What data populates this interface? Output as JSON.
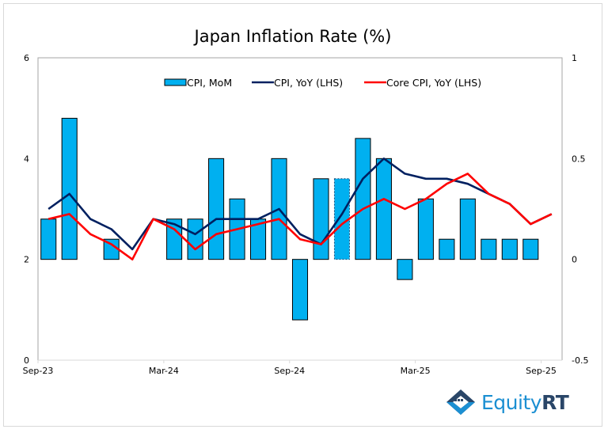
{
  "chart_data": {
    "type": "bar+line",
    "title": "Japan Inflation Rate (%)",
    "xlabel": "",
    "ylabel_left": "",
    "ylabel_right": "",
    "categories": [
      "Sep-23",
      "Oct-23",
      "Nov-23",
      "Dec-23",
      "Jan-24",
      "Feb-24",
      "Mar-24",
      "Apr-24",
      "May-24",
      "Jun-24",
      "Jul-24",
      "Aug-24",
      "Sep-24",
      "Oct-24",
      "Nov-24",
      "Dec-24",
      "Jan-25",
      "Feb-25",
      "Mar-25",
      "Apr-25",
      "May-25",
      "Jun-25",
      "Jul-25",
      "Aug-25",
      "Sep-25"
    ],
    "x_tick_labels": [
      "Sep-23",
      "Mar-24",
      "Sep-24",
      "Mar-25",
      "Sep-25"
    ],
    "x_tick_indices": [
      0,
      6,
      12,
      18,
      24
    ],
    "left_axis": {
      "range": [
        0,
        6
      ],
      "ticks": [
        "0",
        "2",
        "4",
        "6"
      ],
      "tick_values": [
        0,
        2,
        4,
        6
      ]
    },
    "right_axis": {
      "range": [
        -0.5,
        1
      ],
      "ticks": [
        "-0.5",
        "0",
        "0.5",
        "1"
      ],
      "tick_values": [
        -0.5,
        0,
        0.5,
        1
      ]
    },
    "grid": false,
    "legend_position": "top-center",
    "series": [
      {
        "name": "CPI, MoM",
        "type": "bar",
        "axis": "right",
        "color": "#00b0f0",
        "values": [
          0.2,
          0.7,
          0.0,
          0.1,
          0.0,
          0.0,
          0.2,
          0.2,
          0.5,
          0.3,
          0.2,
          0.5,
          -0.3,
          0.4,
          0.4,
          0.6,
          0.5,
          -0.1,
          0.3,
          0.1,
          0.3,
          0.1,
          0.1,
          0.1,
          null
        ],
        "dashed_border_index": 14
      },
      {
        "name": "CPI, YoY (LHS)",
        "type": "line",
        "axis": "left",
        "color": "#002060",
        "values": [
          3.0,
          3.3,
          2.8,
          2.6,
          2.2,
          2.8,
          2.7,
          2.5,
          2.8,
          2.8,
          2.8,
          3.0,
          2.5,
          2.3,
          2.9,
          3.6,
          4.0,
          3.7,
          3.6,
          3.6,
          3.5,
          3.3,
          3.1,
          2.7,
          2.9
        ]
      },
      {
        "name": "Core CPI, YoY (LHS)",
        "type": "line",
        "axis": "left",
        "color": "#ff0000",
        "values": [
          2.8,
          2.9,
          2.5,
          2.3,
          2.0,
          2.8,
          2.6,
          2.2,
          2.5,
          2.6,
          2.7,
          2.8,
          2.4,
          2.3,
          2.7,
          3.0,
          3.2,
          3.0,
          3.2,
          3.5,
          3.7,
          3.3,
          3.1,
          2.7,
          2.9
        ]
      }
    ]
  },
  "branding": {
    "logo_icon": "equityrt-diamond-icon",
    "logo_text_part1": "Equity",
    "logo_text_part2": "RT"
  }
}
